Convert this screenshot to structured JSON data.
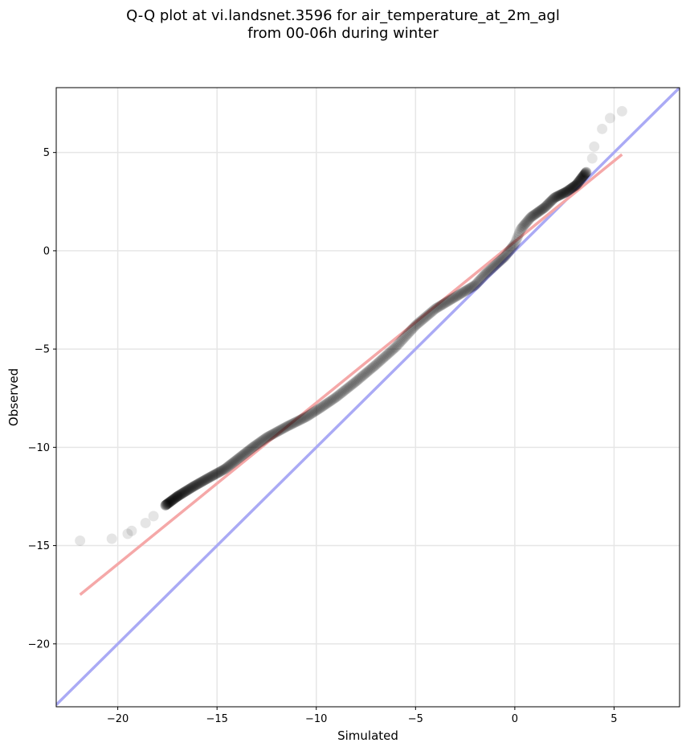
{
  "title": {
    "line1": "Q-Q plot at vi.landsnet.3596 for air_temperature_at_2m_agl",
    "line2": "from 00-06h during winter"
  },
  "colors": {
    "points": "#000000",
    "identity_line": "#aaaaf5",
    "fit_line": "#f5a8a8",
    "grid": "#e6e6e6"
  },
  "chart_data": {
    "type": "scatter",
    "xlabel": "Simulated",
    "ylabel": "Observed",
    "xlim": [
      -23.1,
      8.3
    ],
    "ylim": [
      -23.2,
      8.3
    ],
    "xticks": [
      -20,
      -15,
      -10,
      -5,
      0,
      5
    ],
    "yticks": [
      5,
      0,
      -5,
      -10,
      -15,
      -20
    ],
    "xtick_labels": [
      "−20",
      "−15",
      "−10",
      "−5",
      "0",
      "5"
    ],
    "ytick_labels": [
      "5",
      "0",
      "−5",
      "−10",
      "−15",
      "−20"
    ],
    "grid": true,
    "reference_lines": [
      {
        "kind": "identity",
        "x": [
          -23.1,
          8.3
        ],
        "y": [
          -23.1,
          8.3
        ]
      },
      {
        "kind": "fit",
        "x": [
          -21.9,
          5.4
        ],
        "y": [
          -17.5,
          4.9
        ]
      }
    ],
    "quantile_knots": [
      [
        -21.9,
        -14.75
      ],
      [
        -20.3,
        -14.65
      ],
      [
        -19.5,
        -14.4
      ],
      [
        -19.3,
        -14.25
      ],
      [
        -18.6,
        -13.85
      ],
      [
        -18.2,
        -13.5
      ],
      [
        -17.6,
        -12.95
      ],
      [
        -17.0,
        -12.5
      ],
      [
        -16.2,
        -12.0
      ],
      [
        -15.5,
        -11.6
      ],
      [
        -14.6,
        -11.1
      ],
      [
        -13.9,
        -10.55
      ],
      [
        -13.2,
        -10.0
      ],
      [
        -12.5,
        -9.5
      ],
      [
        -11.5,
        -8.95
      ],
      [
        -10.5,
        -8.45
      ],
      [
        -9.8,
        -8.0
      ],
      [
        -9.0,
        -7.45
      ],
      [
        -8.0,
        -6.65
      ],
      [
        -7.0,
        -5.8
      ],
      [
        -6.0,
        -4.9
      ],
      [
        -5.0,
        -3.8
      ],
      [
        -4.0,
        -2.95
      ],
      [
        -3.0,
        -2.35
      ],
      [
        -2.0,
        -1.75
      ],
      [
        -1.5,
        -1.2
      ],
      [
        -1.0,
        -0.75
      ],
      [
        -0.5,
        -0.3
      ],
      [
        0.0,
        0.35
      ],
      [
        0.3,
        1.1
      ],
      [
        0.8,
        1.7
      ],
      [
        1.5,
        2.2
      ],
      [
        2.0,
        2.7
      ],
      [
        2.6,
        3.0
      ],
      [
        3.1,
        3.35
      ],
      [
        3.6,
        4.0
      ],
      [
        3.9,
        4.7
      ],
      [
        4.0,
        5.3
      ],
      [
        4.4,
        6.2
      ],
      [
        4.8,
        6.75
      ],
      [
        5.4,
        7.1
      ]
    ],
    "n_points": 540
  }
}
